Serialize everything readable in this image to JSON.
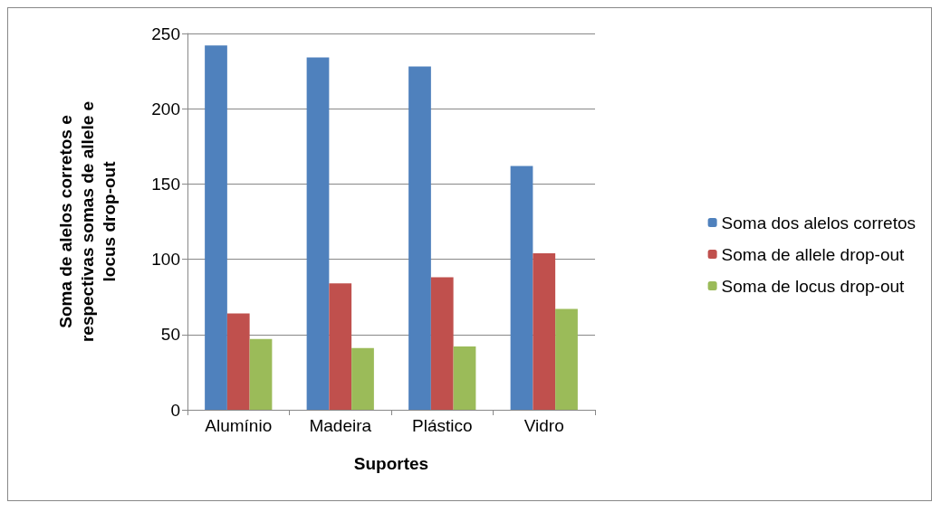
{
  "chart_data": {
    "type": "bar",
    "xlabel": "Suportes",
    "ylabel": "Soma de alelos corretos e\nrespectivas somas de allele e\nlocus drop-out",
    "categories": [
      "Alumínio",
      "Madeira",
      "Plástico",
      "Vidro"
    ],
    "series": [
      {
        "name": "Soma dos alelos corretos",
        "color": "#4f81bd",
        "values": [
          242,
          234,
          228,
          162
        ]
      },
      {
        "name": "Soma de allele drop-out",
        "color": "#c0504d",
        "values": [
          64,
          84,
          88,
          104
        ]
      },
      {
        "name": "Soma de locus drop-out",
        "color": "#9bbb59",
        "values": [
          47,
          41,
          42,
          67
        ]
      }
    ],
    "ylim": [
      0,
      250
    ],
    "yticks": [
      0,
      50,
      100,
      150,
      200,
      250
    ],
    "grid": "y",
    "legend": "right"
  }
}
